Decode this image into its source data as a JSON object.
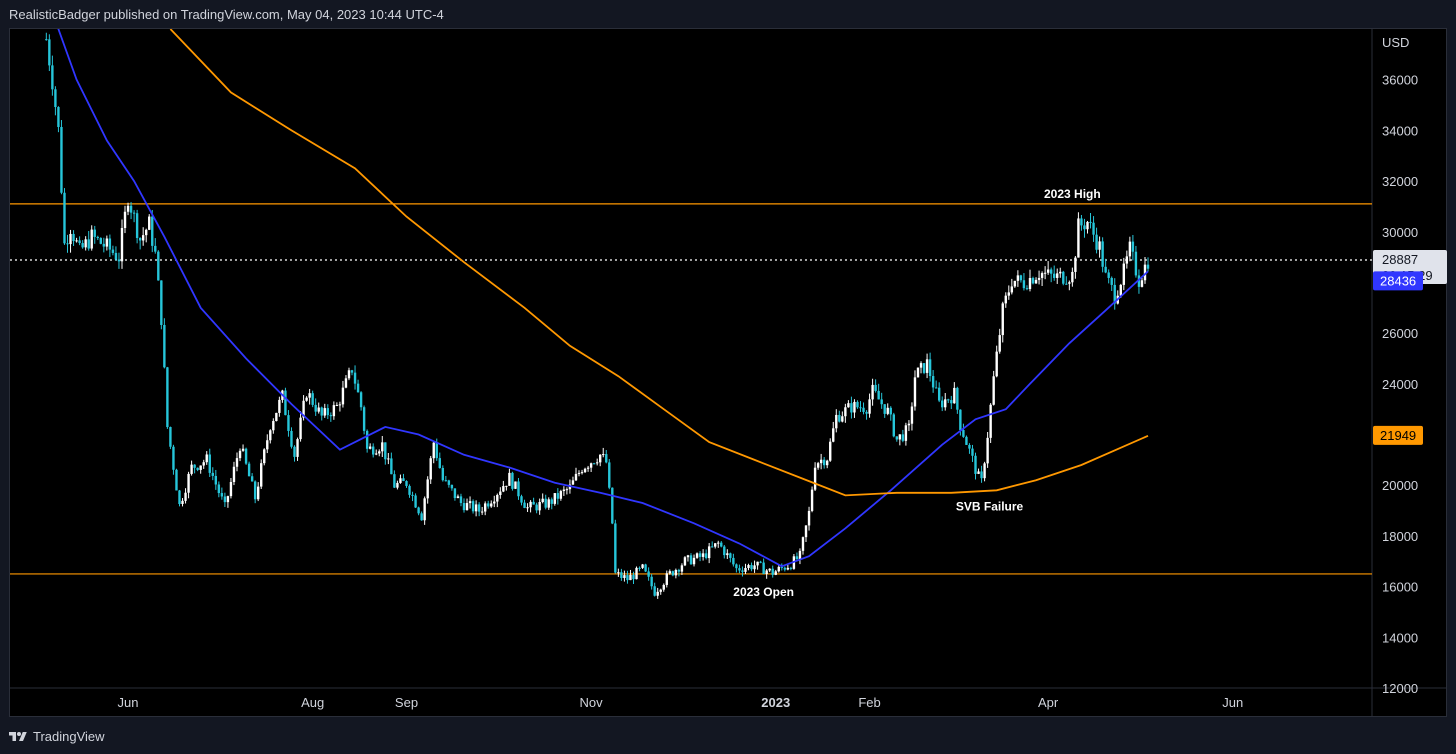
{
  "header": {
    "text": "RealisticBadger published on TradingView.com, May 04, 2023 10:44 UTC-4"
  },
  "footer": {
    "brand": "TradingView",
    "logo_icon": "tradingview-logo-icon"
  },
  "colors": {
    "background": "#000000",
    "candle_up": "#ffffff",
    "candle_down": "#26c6da",
    "ma_short": "#3036ff",
    "ma_long": "#ff9800",
    "level_line": "#ff9800",
    "price_line": "#ffffff",
    "price_tag_bg": "#e0e3eb",
    "price_tag_text": "#131722"
  },
  "chart_data": {
    "type": "line",
    "title": "",
    "currency": "USD",
    "ylim": [
      12000,
      38000
    ],
    "y_ticks": [
      12000,
      14000,
      16000,
      18000,
      20000,
      22000,
      24000,
      26000,
      28000,
      30000,
      32000,
      34000,
      36000
    ],
    "x_labels": [
      {
        "label": "Jun",
        "date": "2022-06-01"
      },
      {
        "label": "Aug",
        "date": "2022-08-01"
      },
      {
        "label": "Sep",
        "date": "2022-09-01"
      },
      {
        "label": "Nov",
        "date": "2022-11-01"
      },
      {
        "label": "2023",
        "date": "2023-01-01"
      },
      {
        "label": "Feb",
        "date": "2023-02-01"
      },
      {
        "label": "Apr",
        "date": "2023-04-01"
      },
      {
        "label": "Jun",
        "date": "2023-06-01"
      }
    ],
    "xlim": [
      "2022-04-23",
      "2023-07-17"
    ],
    "series": [
      {
        "type": "candle_path",
        "points": [
          [
            "2022-05-05",
            37600
          ],
          [
            "2022-05-07",
            36000
          ],
          [
            "2022-05-09",
            34000
          ],
          [
            "2022-05-11",
            29500
          ],
          [
            "2022-05-13",
            30200
          ],
          [
            "2022-05-16",
            29200
          ],
          [
            "2022-05-20",
            29800
          ],
          [
            "2022-05-25",
            29400
          ],
          [
            "2022-05-29",
            29000
          ],
          [
            "2022-06-01",
            31400
          ],
          [
            "2022-06-05",
            29700
          ],
          [
            "2022-06-08",
            30300
          ],
          [
            "2022-06-10",
            29100
          ],
          [
            "2022-06-12",
            26600
          ],
          [
            "2022-06-14",
            22300
          ],
          [
            "2022-06-18",
            19200
          ],
          [
            "2022-06-22",
            20700
          ],
          [
            "2022-06-27",
            21000
          ],
          [
            "2022-07-03",
            19100
          ],
          [
            "2022-07-08",
            21600
          ],
          [
            "2022-07-13",
            19500
          ],
          [
            "2022-07-18",
            22400
          ],
          [
            "2022-07-22",
            23500
          ],
          [
            "2022-07-26",
            21200
          ],
          [
            "2022-07-30",
            23700
          ],
          [
            "2022-08-04",
            22700
          ],
          [
            "2022-08-09",
            23100
          ],
          [
            "2022-08-14",
            24600
          ],
          [
            "2022-08-17",
            23100
          ],
          [
            "2022-08-19",
            21400
          ],
          [
            "2022-08-24",
            21600
          ],
          [
            "2022-08-28",
            20000
          ],
          [
            "2022-09-01",
            20100
          ],
          [
            "2022-09-06",
            18800
          ],
          [
            "2022-09-10",
            21700
          ],
          [
            "2022-09-13",
            20200
          ],
          [
            "2022-09-19",
            19300
          ],
          [
            "2022-09-25",
            19000
          ],
          [
            "2022-09-30",
            19600
          ],
          [
            "2022-10-05",
            20300
          ],
          [
            "2022-10-11",
            19100
          ],
          [
            "2022-10-18",
            19300
          ],
          [
            "2022-10-25",
            19900
          ],
          [
            "2022-10-29",
            20700
          ],
          [
            "2022-11-04",
            21200
          ],
          [
            "2022-11-06",
            20900
          ],
          [
            "2022-11-08",
            18500
          ],
          [
            "2022-11-09",
            16500
          ],
          [
            "2022-11-13",
            16300
          ],
          [
            "2022-11-18",
            16700
          ],
          [
            "2022-11-22",
            15800
          ],
          [
            "2022-11-27",
            16500
          ],
          [
            "2022-12-02",
            17000
          ],
          [
            "2022-12-08",
            17200
          ],
          [
            "2022-12-13",
            17700
          ],
          [
            "2022-12-15",
            17400
          ],
          [
            "2022-12-19",
            16700
          ],
          [
            "2022-12-25",
            16850
          ],
          [
            "2022-12-31",
            16550
          ],
          [
            "2023-01-06",
            16900
          ],
          [
            "2023-01-09",
            17200
          ],
          [
            "2023-01-12",
            18900
          ],
          [
            "2023-01-14",
            20900
          ],
          [
            "2023-01-18",
            21100
          ],
          [
            "2023-01-21",
            22700
          ],
          [
            "2023-01-26",
            23100
          ],
          [
            "2023-01-31",
            23100
          ],
          [
            "2023-02-02",
            23700
          ],
          [
            "2023-02-07",
            22900
          ],
          [
            "2023-02-10",
            21800
          ],
          [
            "2023-02-14",
            22200
          ],
          [
            "2023-02-16",
            24300
          ],
          [
            "2023-02-20",
            24800
          ],
          [
            "2023-02-24",
            23200
          ],
          [
            "2023-03-01",
            23600
          ],
          [
            "2023-03-03",
            22400
          ],
          [
            "2023-03-09",
            20300
          ],
          [
            "2023-03-10",
            20100
          ],
          [
            "2023-03-12",
            22000
          ],
          [
            "2023-03-14",
            24200
          ],
          [
            "2023-03-17",
            26900
          ],
          [
            "2023-03-20",
            28100
          ],
          [
            "2023-03-24",
            28000
          ],
          [
            "2023-03-29",
            28400
          ],
          [
            "2023-04-03",
            28200
          ],
          [
            "2023-04-09",
            28300
          ],
          [
            "2023-04-11",
            30200
          ],
          [
            "2023-04-14",
            30400
          ],
          [
            "2023-04-18",
            29400
          ],
          [
            "2023-04-20",
            28200
          ],
          [
            "2023-04-23",
            27500
          ],
          [
            "2023-04-26",
            28400
          ],
          [
            "2023-04-28",
            29300
          ],
          [
            "2023-05-01",
            28100
          ],
          [
            "2023-05-04",
            28887
          ]
        ]
      },
      {
        "type": "line",
        "color_key": "ma_short",
        "points": [
          [
            "2022-05-06",
            39000
          ],
          [
            "2022-05-15",
            36000
          ],
          [
            "2022-05-25",
            33600
          ],
          [
            "2022-06-03",
            32000
          ],
          [
            "2022-06-13",
            29800
          ],
          [
            "2022-06-25",
            27000
          ],
          [
            "2022-07-10",
            25000
          ],
          [
            "2022-07-25",
            23200
          ],
          [
            "2022-08-10",
            21400
          ],
          [
            "2022-08-25",
            22300
          ],
          [
            "2022-09-05",
            22000
          ],
          [
            "2022-09-20",
            21200
          ],
          [
            "2022-10-05",
            20700
          ],
          [
            "2022-10-20",
            20100
          ],
          [
            "2022-11-04",
            19700
          ],
          [
            "2022-11-18",
            19300
          ],
          [
            "2022-12-05",
            18500
          ],
          [
            "2022-12-20",
            17700
          ],
          [
            "2023-01-03",
            16800
          ],
          [
            "2023-01-12",
            17200
          ],
          [
            "2023-01-24",
            18300
          ],
          [
            "2023-02-08",
            19800
          ],
          [
            "2023-02-25",
            21600
          ],
          [
            "2023-03-08",
            22600
          ],
          [
            "2023-03-18",
            23000
          ],
          [
            "2023-03-26",
            24000
          ],
          [
            "2023-04-08",
            25600
          ],
          [
            "2023-04-20",
            26900
          ],
          [
            "2023-05-04",
            28436
          ]
        ]
      },
      {
        "type": "line",
        "color_key": "ma_long",
        "points": [
          [
            "2022-06-15",
            38000
          ],
          [
            "2022-07-05",
            35500
          ],
          [
            "2022-07-25",
            34000
          ],
          [
            "2022-08-15",
            32500
          ],
          [
            "2022-09-01",
            30600
          ],
          [
            "2022-09-20",
            28800
          ],
          [
            "2022-10-10",
            27000
          ],
          [
            "2022-10-25",
            25500
          ],
          [
            "2022-11-10",
            24300
          ],
          [
            "2022-11-25",
            23000
          ],
          [
            "2022-12-10",
            21700
          ],
          [
            "2022-12-25",
            21000
          ],
          [
            "2023-01-09",
            20300
          ],
          [
            "2023-01-24",
            19600
          ],
          [
            "2023-02-10",
            19700
          ],
          [
            "2023-02-28",
            19700
          ],
          [
            "2023-03-15",
            19800
          ],
          [
            "2023-03-28",
            20200
          ],
          [
            "2023-04-12",
            20800
          ],
          [
            "2023-05-04",
            21949
          ]
        ]
      }
    ],
    "levels": [
      {
        "value": 31100,
        "label": "2023 High",
        "label_date": "2023-04-09"
      },
      {
        "value": 16500,
        "label": "2023 Open",
        "label_date": "2022-12-28"
      }
    ],
    "annotations": [
      {
        "text": "SVB Failure",
        "date": "2023-03-10",
        "value": 19200
      }
    ],
    "last_price": 28887,
    "countdown": "09:15:29",
    "ma_short_value": 28436,
    "ma_long_value": 21949
  }
}
